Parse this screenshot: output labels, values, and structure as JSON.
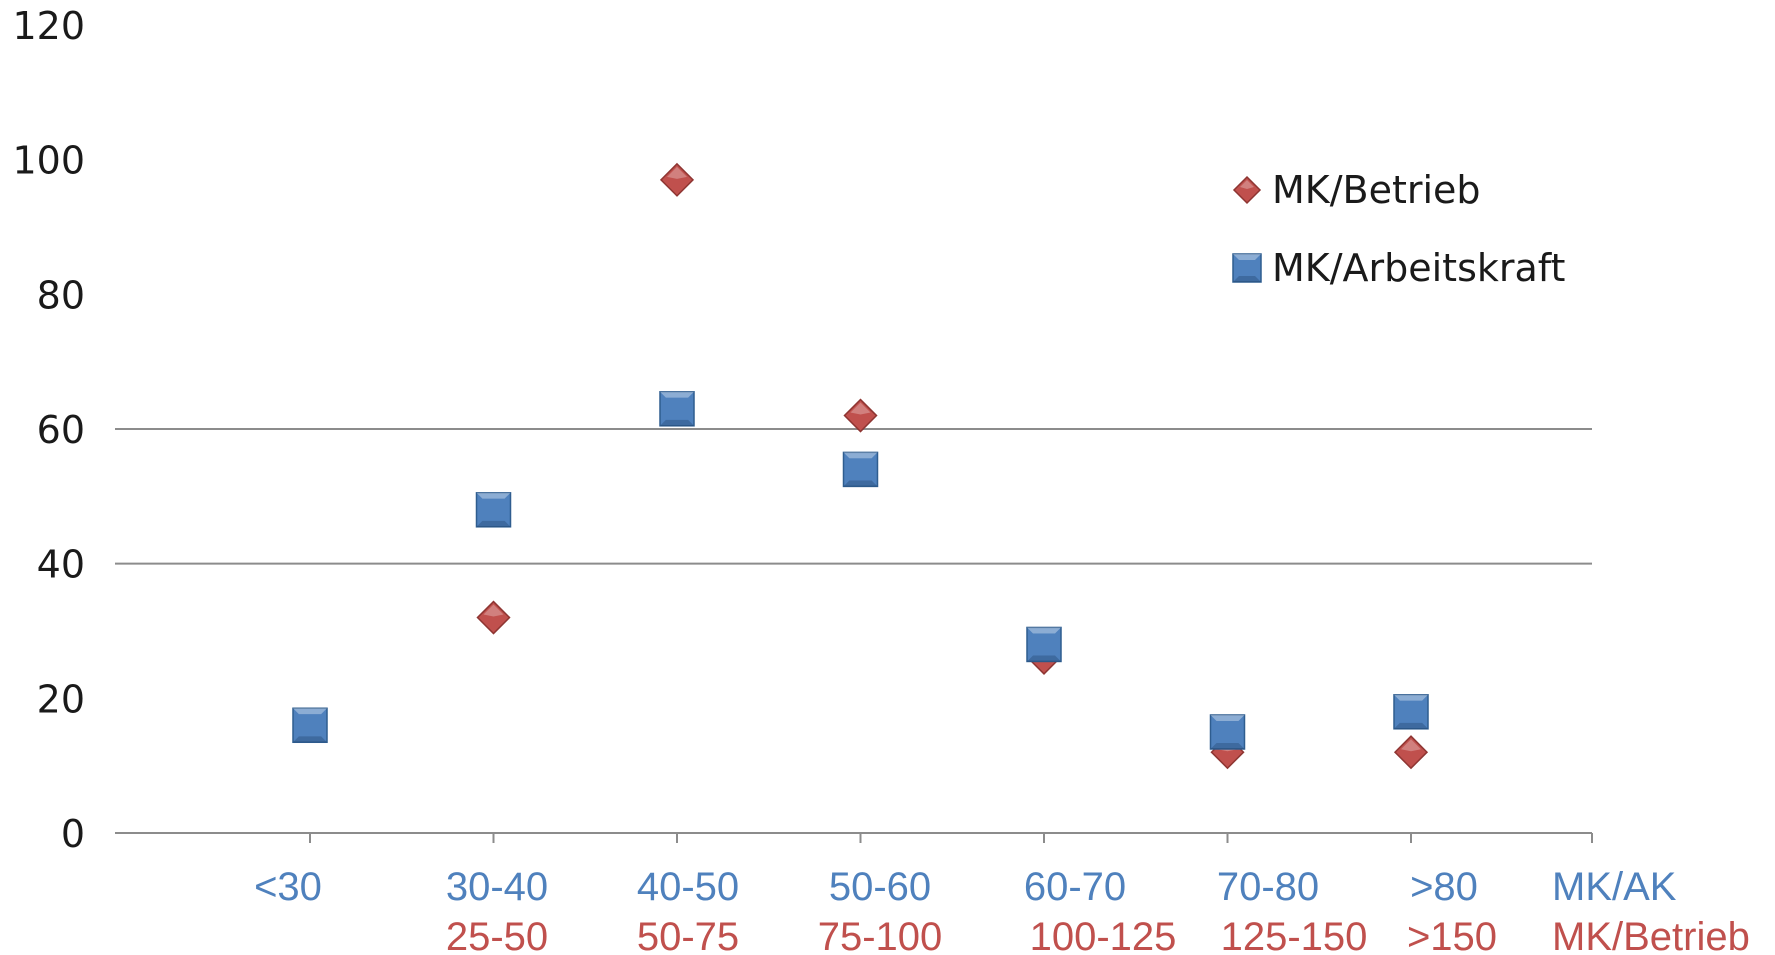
{
  "chart_data": {
    "type": "scatter",
    "title": "",
    "xlabel": "",
    "ylabel": "",
    "ylim": [
      0,
      120
    ],
    "yticks": [
      "0",
      "20",
      "40",
      "60",
      "80",
      "100",
      "120"
    ],
    "grid": "horizontal lines at 40 and 60 only",
    "legend_position": "top-right",
    "categories_ak": [
      "<30",
      "30-40",
      "40-50",
      "50-60",
      "60-70",
      "70-80",
      ">80"
    ],
    "categories_betrieb": [
      "",
      "25-50",
      "50-75",
      "75-100",
      "100-125",
      "125-150",
      ">150"
    ],
    "axis_row_label_ak": "MK/AK",
    "axis_row_label_betrieb": "MK/Betrieb",
    "series": [
      {
        "name": "MK/Betrieb",
        "marker": "diamond",
        "color": "#c0504d",
        "values": [
          null,
          32,
          97,
          62,
          26,
          12,
          12
        ]
      },
      {
        "name": "MK/Arbeitskraft",
        "marker": "square",
        "color": "#4f81bd",
        "values": [
          16,
          48,
          63,
          54,
          28,
          15,
          18
        ]
      }
    ]
  }
}
